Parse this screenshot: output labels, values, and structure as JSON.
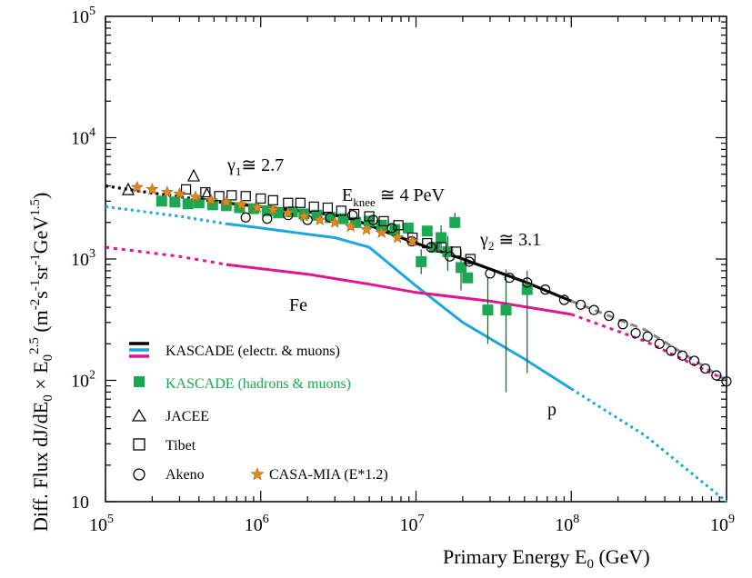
{
  "chart_data": {
    "type": "scatter",
    "x_scale": "log",
    "y_scale": "log",
    "xlim": [
      100000,
      1000000000
    ],
    "ylim": [
      10,
      100000
    ],
    "xlabel": "Primary Energy  E0 (GeV)",
    "ylabel": "Diff. Flux  dJ/dE0 × E0^2.5  (m^-2·s^-1·sr^-1·GeV^1.5)",
    "x_ticks": [
      {
        "value": 100000,
        "base": "10",
        "exp": "5"
      },
      {
        "value": 1000000,
        "base": "10",
        "exp": "6"
      },
      {
        "value": 10000000,
        "base": "10",
        "exp": "7"
      },
      {
        "value": 100000000,
        "base": "10",
        "exp": "8"
      },
      {
        "value": 1000000000,
        "base": "10",
        "exp": "9"
      }
    ],
    "y_ticks": [
      {
        "value": 10,
        "base": "10",
        "exp": ""
      },
      {
        "value": 100,
        "base": "10",
        "exp": "2"
      },
      {
        "value": 1000,
        "base": "10",
        "exp": "3"
      },
      {
        "value": 10000,
        "base": "10",
        "exp": "4"
      },
      {
        "value": 100000,
        "base": "10",
        "exp": "5"
      }
    ],
    "colors": {
      "black": "#000000",
      "cyan": "#1aa7e0",
      "magenta": "#e0158f",
      "green": "#1aa852",
      "orange": "#e08a1a",
      "gray": "#888888"
    },
    "annotations": {
      "gamma1": "γ1 ≅ 2.7",
      "eknee": "Eknee ≅ 4 PeV",
      "gamma2": "γ2 ≅ 3.1",
      "fe": "Fe",
      "p": "p"
    },
    "legend": {
      "kascade_em": "KASCADE (electr. & muons)",
      "kascade_hm": "KASCADE (hadrons & muons)",
      "jacee": "JACEE",
      "tibet": "Tibet",
      "akeno": "Akeno",
      "casa": "CASA-MIA (E*1.2)"
    },
    "series": [
      {
        "name": "KASCADE (electr. & muons)",
        "style": "black-solid",
        "points": [
          [
            600000,
            2900
          ],
          [
            1000000,
            2700
          ],
          [
            2000000,
            2450
          ],
          [
            3000000,
            2300
          ],
          [
            4000000,
            2100
          ],
          [
            5000000,
            1900
          ],
          [
            7000000,
            1600
          ],
          [
            10000000,
            1350
          ],
          [
            20000000,
            1000
          ],
          [
            50000000,
            650
          ],
          [
            100000000,
            450
          ]
        ]
      },
      {
        "name": "",
        "style": "black-dotted",
        "points": [
          [
            100000,
            4000
          ],
          [
            200000,
            3500
          ],
          [
            400000,
            3100
          ],
          [
            600000,
            2900
          ]
        ]
      },
      {
        "name": "p",
        "style": "cyan-solid",
        "points": [
          [
            600000,
            1950
          ],
          [
            1000000,
            1800
          ],
          [
            2000000,
            1600
          ],
          [
            3000000,
            1500
          ],
          [
            5000000,
            1250
          ],
          [
            10000000,
            600
          ],
          [
            20000000,
            300
          ],
          [
            50000000,
            150
          ],
          [
            100000000,
            85
          ]
        ]
      },
      {
        "name": "",
        "style": "cyan-dotted",
        "points": [
          [
            100000,
            2700
          ],
          [
            300000,
            2250
          ],
          [
            600000,
            1950
          ]
        ]
      },
      {
        "name": "",
        "style": "cyan-dotted",
        "points": [
          [
            100000000,
            85
          ],
          [
            300000000,
            35
          ],
          [
            1000000000,
            10
          ]
        ]
      },
      {
        "name": "Fe",
        "style": "magenta-solid",
        "points": [
          [
            600000,
            900
          ],
          [
            2000000,
            750
          ],
          [
            5000000,
            620
          ],
          [
            10000000,
            530
          ],
          [
            30000000,
            450
          ],
          [
            100000000,
            350
          ]
        ]
      },
      {
        "name": "",
        "style": "magenta-dotted",
        "points": [
          [
            100000,
            1250
          ],
          [
            300000,
            1050
          ],
          [
            600000,
            900
          ]
        ]
      },
      {
        "name": "",
        "style": "magenta-dotted",
        "points": [
          [
            100000000,
            350
          ],
          [
            300000000,
            210
          ],
          [
            1000000000,
            100
          ]
        ]
      },
      {
        "name": "",
        "style": "gray-dashed",
        "points": [
          [
            100000000,
            450
          ],
          [
            300000000,
            260
          ],
          [
            1000000000,
            100
          ]
        ]
      },
      {
        "name": "KASCADE (hadrons & muons)",
        "style": "green-square",
        "points": [
          [
            230000,
            3000
          ],
          [
            280000,
            2950
          ],
          [
            340000,
            2850
          ],
          [
            400000,
            2900
          ],
          [
            490000,
            2800
          ],
          [
            600000,
            2750
          ],
          [
            730000,
            2650
          ],
          [
            900000,
            2600
          ],
          [
            1100000,
            2500
          ],
          [
            1300000,
            2400
          ],
          [
            1600000,
            2450
          ],
          [
            1900000,
            2350
          ],
          [
            2300000,
            2300
          ],
          [
            2800000,
            2200
          ],
          [
            3400000,
            2150
          ],
          [
            4100000,
            2000
          ],
          [
            5000000,
            2050
          ],
          [
            6000000,
            1900
          ],
          [
            7300000,
            1750
          ],
          [
            8900000,
            1800
          ],
          [
            10800000,
            950
          ],
          [
            11800000,
            1700
          ],
          [
            13200000,
            1250
          ],
          [
            14500000,
            1500
          ],
          [
            16000000,
            1150
          ],
          [
            17800000,
            2000
          ],
          [
            19500000,
            850
          ],
          [
            21500000,
            700
          ],
          [
            29000000,
            380
          ],
          [
            38000000,
            380
          ],
          [
            52000000,
            560
          ]
        ],
        "errors": [
          [
            10800000,
            750,
            1200
          ],
          [
            14500000,
            1150,
            1900
          ],
          [
            16000000,
            800,
            1550
          ],
          [
            17800000,
            1800,
            2400
          ],
          [
            19500000,
            550,
            1200
          ],
          [
            29000000,
            200,
            700
          ],
          [
            38000000,
            80,
            820
          ],
          [
            52000000,
            115,
            800
          ]
        ]
      },
      {
        "name": "JACEE",
        "style": "open-triangle",
        "points": [
          [
            140000,
            3700
          ],
          [
            370000,
            4800
          ],
          [
            450000,
            3400
          ]
        ]
      },
      {
        "name": "Tibet",
        "style": "open-square",
        "points": [
          [
            330000,
            3750
          ],
          [
            440000,
            3550
          ],
          [
            540000,
            3300
          ],
          [
            650000,
            3350
          ],
          [
            800000,
            3300
          ],
          [
            1000000,
            3150
          ],
          [
            1200000,
            3050
          ],
          [
            1500000,
            2900
          ],
          [
            1800000,
            2900
          ],
          [
            2200000,
            2700
          ],
          [
            2700000,
            2650
          ],
          [
            3300000,
            2500
          ],
          [
            4000000,
            2350
          ],
          [
            5000000,
            2250
          ],
          [
            6200000,
            2050
          ],
          [
            7700000,
            1900
          ],
          [
            9500000,
            1500
          ],
          [
            11800000,
            1350
          ],
          [
            14600000,
            1250
          ],
          [
            18100000,
            1150
          ],
          [
            22400000,
            1000
          ]
        ]
      },
      {
        "name": "Akeno",
        "style": "open-circle",
        "points": [
          [
            800000,
            2200
          ],
          [
            1100000,
            2150
          ],
          [
            1500000,
            2300
          ],
          [
            2000000,
            2100
          ],
          [
            2800000,
            2200
          ],
          [
            3900000,
            2300
          ],
          [
            5300000,
            2100
          ],
          [
            7000000,
            1800
          ],
          [
            9400000,
            1400
          ],
          [
            12500000,
            1250
          ],
          [
            16500000,
            1050
          ],
          [
            22000000,
            950
          ],
          [
            30000000,
            760
          ],
          [
            40000000,
            700
          ],
          [
            52000000,
            640
          ],
          [
            68000000,
            560
          ],
          [
            90000000,
            460
          ],
          [
            115000000,
            420
          ],
          [
            140000000,
            380
          ],
          [
            175000000,
            340
          ],
          [
            215000000,
            290
          ],
          [
            260000000,
            245
          ],
          [
            310000000,
            230
          ],
          [
            370000000,
            200
          ],
          [
            440000000,
            175
          ],
          [
            520000000,
            160
          ],
          [
            620000000,
            145
          ],
          [
            730000000,
            125
          ],
          [
            860000000,
            110
          ],
          [
            1000000000,
            98
          ]
        ]
      },
      {
        "name": "CASA-MIA (E*1.2)",
        "style": "orange-star",
        "points": [
          [
            160000,
            3900
          ],
          [
            200000,
            3750
          ],
          [
            250000,
            3550
          ],
          [
            300000,
            3450
          ],
          [
            380000,
            3250
          ],
          [
            480000,
            3050
          ],
          [
            600000,
            2950
          ],
          [
            750000,
            2800
          ],
          [
            950000,
            2650
          ],
          [
            1200000,
            2550
          ],
          [
            1500000,
            2400
          ],
          [
            1900000,
            2250
          ],
          [
            2400000,
            2100
          ],
          [
            3000000,
            2000
          ],
          [
            3800000,
            1850
          ],
          [
            4800000,
            1750
          ],
          [
            6000000,
            1650
          ],
          [
            7600000,
            1500
          ],
          [
            9500000,
            1400
          ]
        ]
      }
    ]
  }
}
